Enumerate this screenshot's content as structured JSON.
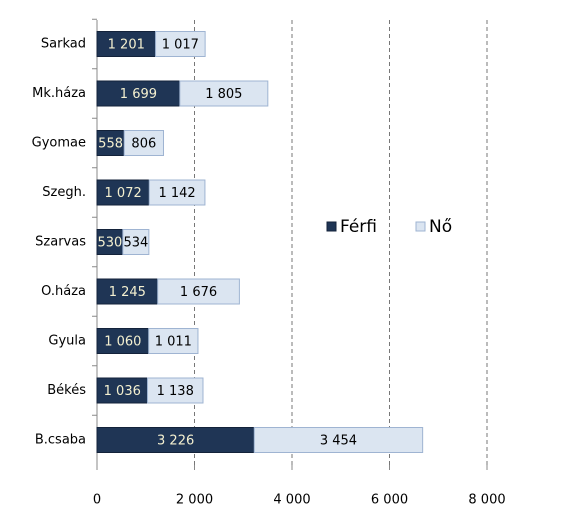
{
  "chart_data": {
    "type": "bar",
    "orientation": "horizontal",
    "stacked": true,
    "categories": [
      "Sarkad",
      "Mk.háza",
      "Gyomae",
      "Szegh.",
      "Szarvas",
      "O.háza",
      "Gyula",
      "Békés",
      "B.csaba"
    ],
    "series": [
      {
        "name": "Férfi",
        "color": "#1f3555",
        "values": [
          1201,
          1699,
          558,
          1072,
          530,
          1245,
          1060,
          1036,
          3226
        ],
        "value_labels": [
          "1 201",
          "1 699",
          "558",
          "1 072",
          "530",
          "1 245",
          "1 060",
          "1 036",
          "3 226"
        ]
      },
      {
        "name": "Nő",
        "color": "#dbe5f1",
        "values": [
          1017,
          1805,
          806,
          1142,
          534,
          1676,
          1011,
          1138,
          3454
        ],
        "value_labels": [
          "1 017",
          "1 805",
          "806",
          "1 142",
          "534",
          "1 676",
          "1 011",
          "1 138",
          "3 454"
        ]
      }
    ],
    "xlim": [
      0,
      8000
    ],
    "xticks": [
      0,
      {
        "value": 2000,
        "label": "2 000"
      },
      {
        "value": 4000,
        "label": "4 000"
      },
      {
        "value": 6000,
        "label": "6 000"
      },
      {
        "value": 8000,
        "label": "8 000"
      }
    ],
    "grid": true,
    "legend": "center"
  }
}
